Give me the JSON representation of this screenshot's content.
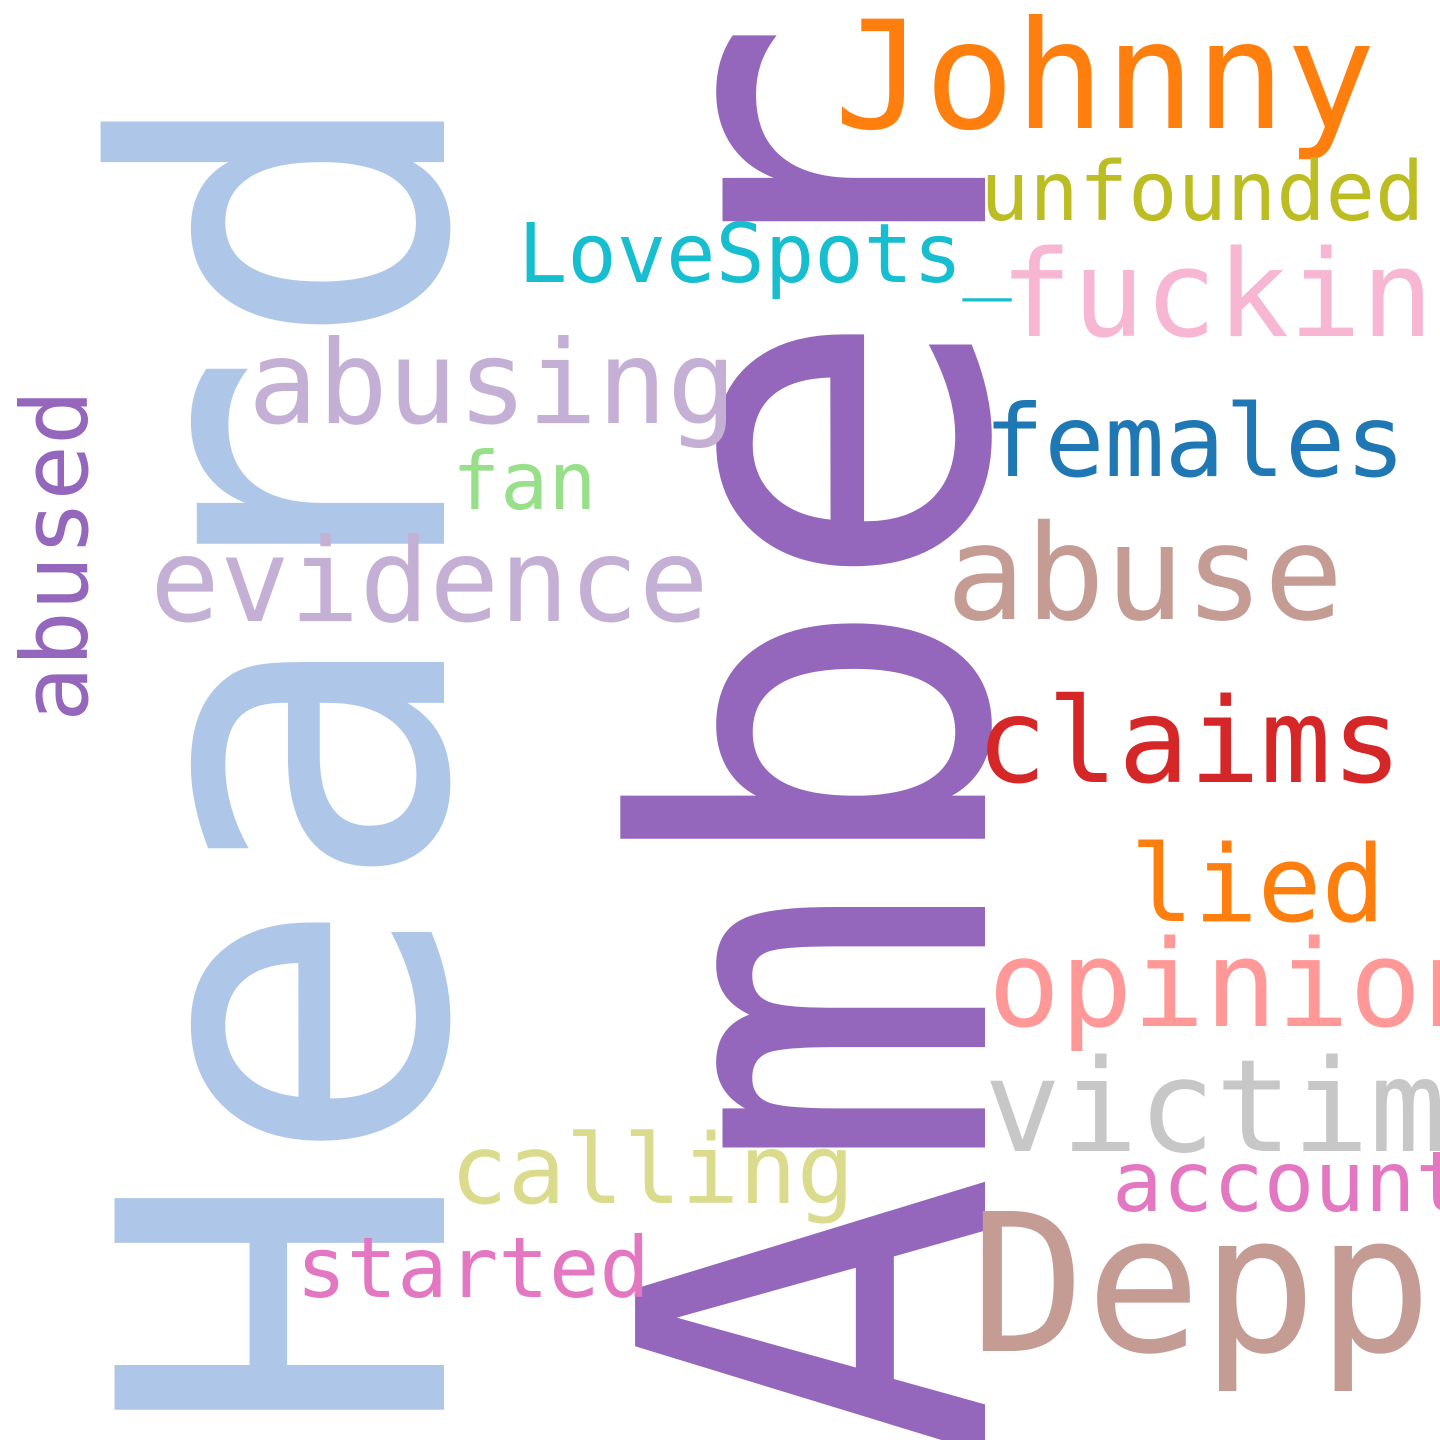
{
  "words": {
    "amber": {
      "text": "Amber",
      "color": "#9467bd"
    },
    "heard": {
      "text": "Heard",
      "color": "#aec7e8"
    },
    "johnny": {
      "text": "Johnny",
      "color": "#ff7f0e"
    },
    "depp": {
      "text": "Depp",
      "color": "#c49c94"
    },
    "unfounded": {
      "text": "unfounded",
      "color": "#bcbd22"
    },
    "lovespots": {
      "text": "LoveSpots_",
      "color": "#17becf"
    },
    "fucking": {
      "text": "fucking",
      "color": "#f7b6d2"
    },
    "abusing": {
      "text": "abusing",
      "color": "#c5b0d5"
    },
    "females": {
      "text": "females",
      "color": "#1f77b4"
    },
    "fan": {
      "text": "fan",
      "color": "#98df8a"
    },
    "abused": {
      "text": "abused",
      "color": "#9467bd"
    },
    "evidence": {
      "text": "evidence",
      "color": "#c5b0d5"
    },
    "abuse": {
      "text": "abuse",
      "color": "#c49c94"
    },
    "claims": {
      "text": "claims",
      "color": "#d62728"
    },
    "lied": {
      "text": "lied",
      "color": "#ff7f0e"
    },
    "opinion": {
      "text": "opinion",
      "color": "#ff9896"
    },
    "victim": {
      "text": "victim",
      "color": "#c7c7c7"
    },
    "calling": {
      "text": "calling",
      "color": "#dbdb8d"
    },
    "account": {
      "text": "account",
      "color": "#e377c2"
    },
    "started": {
      "text": "started",
      "color": "#e377c2"
    }
  }
}
